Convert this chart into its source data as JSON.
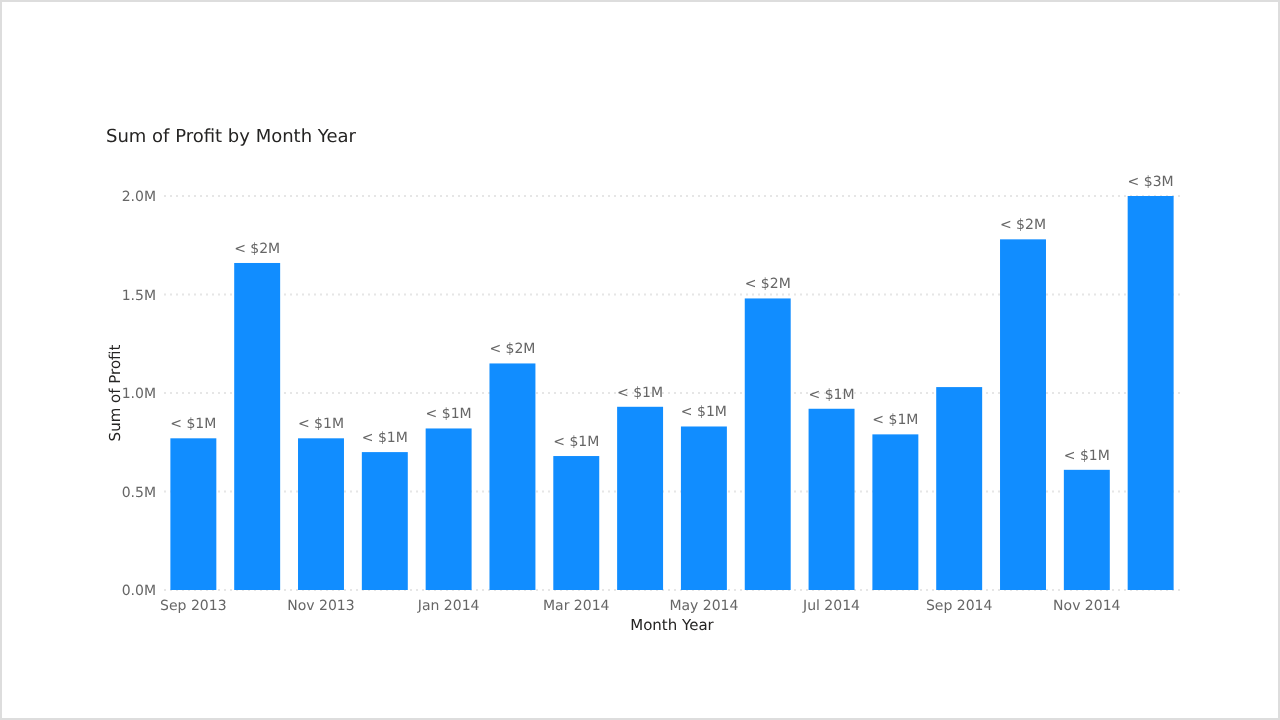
{
  "chart_data": {
    "type": "bar",
    "title": "Sum of Profit by Month Year",
    "xlabel": "Month Year",
    "ylabel": "Sum of Profit",
    "categories": [
      "Sep 2013",
      null,
      "Nov 2013",
      null,
      "Jan 2014",
      null,
      "Mar 2014",
      null,
      "May 2014",
      null,
      "Jul 2014",
      null,
      "Sep 2014",
      null,
      "Nov 2014",
      null
    ],
    "values": [
      0.77,
      1.66,
      0.77,
      0.7,
      0.82,
      1.15,
      0.68,
      0.93,
      0.83,
      1.48,
      0.92,
      0.79,
      1.03,
      1.78,
      0.61,
      2.0
    ],
    "value_labels": [
      "< $1M",
      "< $2M",
      "< $1M",
      "< $1M",
      "< $1M",
      "< $2M",
      "< $1M",
      "< $1M",
      "< $1M",
      "< $2M",
      "< $1M",
      "< $1M",
      null,
      "< $2M",
      "< $1M",
      "< $3M"
    ],
    "color": "#118dff",
    "ylim": [
      0,
      2
    ],
    "yticks": [
      {
        "value": 0,
        "label": "0.0M"
      },
      {
        "value": 0.5,
        "label": "0.5M"
      },
      {
        "value": 1,
        "label": "1.0M"
      },
      {
        "value": 1.5,
        "label": "1.5M"
      },
      {
        "value": 2,
        "label": "2.0M"
      }
    ],
    "grid": "y"
  }
}
